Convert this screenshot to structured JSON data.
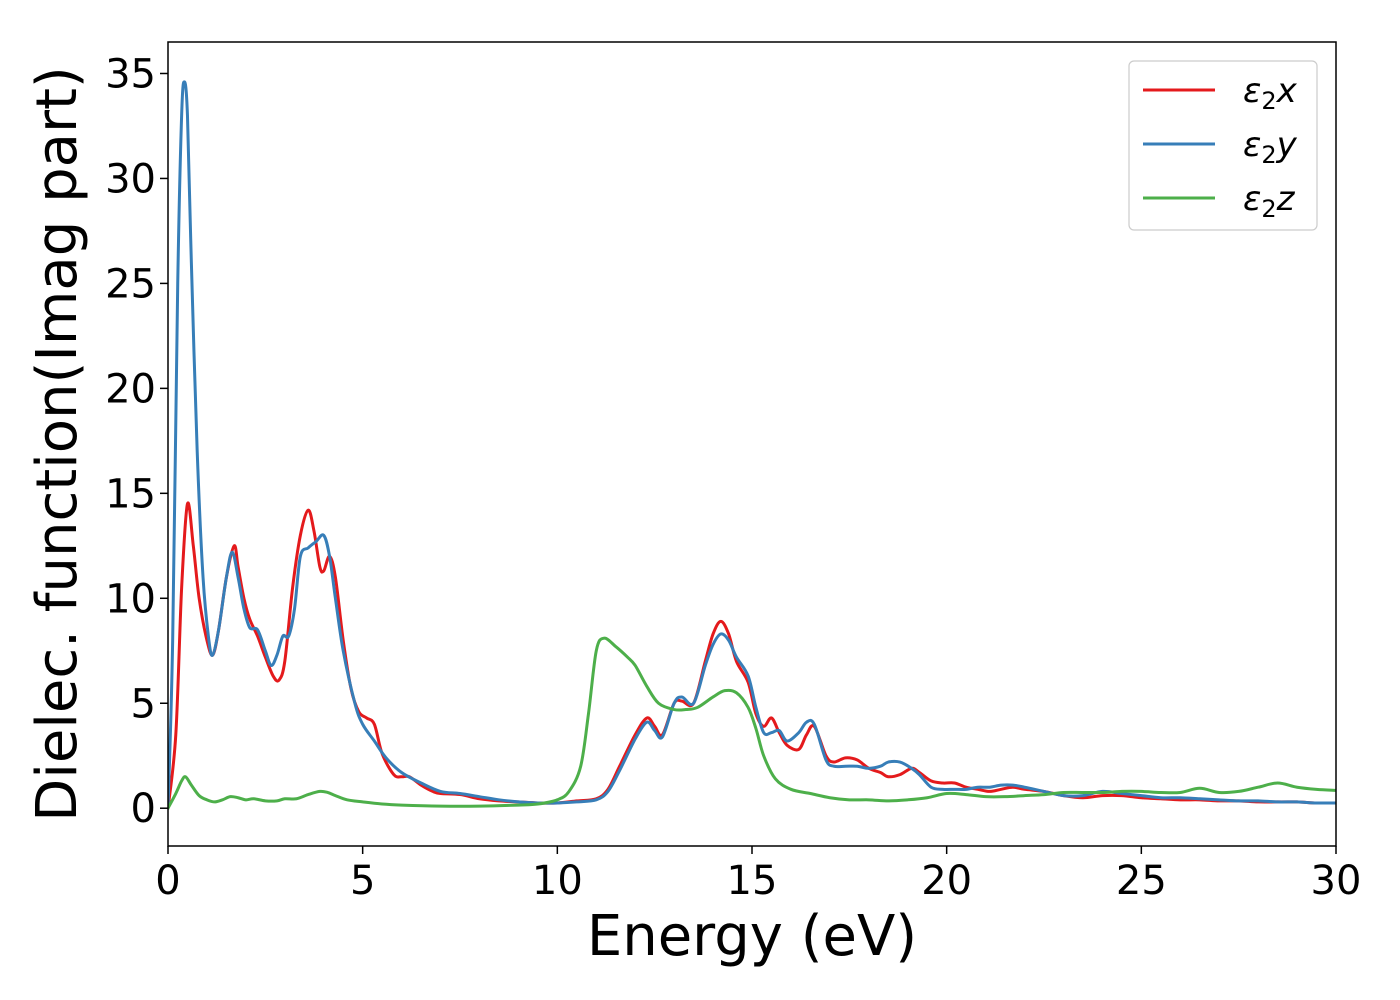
{
  "chart_data": {
    "type": "line",
    "title": "",
    "xlabel": "Energy (eV)",
    "ylabel": "Dielec. function(Imag part)",
    "xlim": [
      0,
      30
    ],
    "ylim": [
      -1.8,
      36.5
    ],
    "xticks": [
      0,
      5,
      10,
      15,
      20,
      25,
      30
    ],
    "yticks": [
      0,
      5,
      10,
      15,
      20,
      25,
      30,
      35
    ],
    "grid": false,
    "legend_position": "top-right",
    "series": [
      {
        "name": "ε₂x",
        "legend_main": "ε",
        "legend_sub": "2",
        "legend_axis": "x",
        "color": "#e41a1c",
        "x": [
          0,
          0.2,
          0.35,
          0.5,
          0.65,
          0.8,
          1.0,
          1.15,
          1.3,
          1.5,
          1.7,
          1.8,
          1.95,
          2.1,
          2.3,
          2.5,
          2.7,
          2.85,
          3.0,
          3.2,
          3.4,
          3.6,
          3.75,
          3.9,
          4.0,
          4.15,
          4.3,
          4.5,
          4.7,
          4.9,
          5.1,
          5.3,
          5.5,
          5.8,
          6.0,
          6.2,
          6.5,
          6.8,
          7.0,
          7.5,
          8.0,
          8.5,
          9.0,
          9.5,
          10.0,
          10.5,
          11.0,
          11.3,
          11.6,
          12.0,
          12.3,
          12.5,
          12.7,
          13.0,
          13.2,
          13.5,
          13.8,
          14.0,
          14.2,
          14.4,
          14.6,
          14.9,
          15.1,
          15.3,
          15.5,
          15.7,
          15.9,
          16.2,
          16.4,
          16.6,
          16.9,
          17.1,
          17.4,
          17.7,
          18.0,
          18.3,
          18.5,
          18.8,
          19.1,
          19.3,
          19.6,
          19.9,
          20.2,
          20.5,
          20.8,
          21.1,
          21.4,
          21.7,
          22.0,
          22.5,
          23.0,
          23.5,
          24.0,
          24.5,
          25.0,
          25.5,
          26.0,
          26.5,
          27.0,
          27.5,
          28.0,
          28.5,
          29.0,
          29.5,
          30.0
        ],
        "y": [
          0,
          3.5,
          10.5,
          14.5,
          12.5,
          10.0,
          8.0,
          7.3,
          8.5,
          11.0,
          12.5,
          11.5,
          10.0,
          9.0,
          8.2,
          7.2,
          6.3,
          6.1,
          7.0,
          10.5,
          13.0,
          14.2,
          13.2,
          11.5,
          11.3,
          12.0,
          11.0,
          8.0,
          5.7,
          4.6,
          4.3,
          4.0,
          2.6,
          1.6,
          1.5,
          1.5,
          1.1,
          0.8,
          0.7,
          0.65,
          0.45,
          0.35,
          0.3,
          0.25,
          0.25,
          0.35,
          0.45,
          0.9,
          2.0,
          3.5,
          4.3,
          3.9,
          3.5,
          5.0,
          5.1,
          5.0,
          7.0,
          8.3,
          8.9,
          8.3,
          7.0,
          6.0,
          4.5,
          3.9,
          4.3,
          3.6,
          3.0,
          2.8,
          3.5,
          3.9,
          2.5,
          2.2,
          2.4,
          2.3,
          1.9,
          1.7,
          1.5,
          1.6,
          1.9,
          1.7,
          1.3,
          1.2,
          1.2,
          1.0,
          0.9,
          0.8,
          0.9,
          1.0,
          0.9,
          0.8,
          0.6,
          0.5,
          0.6,
          0.6,
          0.5,
          0.45,
          0.4,
          0.4,
          0.35,
          0.35,
          0.3,
          0.3,
          0.3,
          0.25,
          0.25
        ]
      },
      {
        "name": "ε₂y",
        "legend_main": "ε",
        "legend_sub": "2",
        "legend_axis": "y",
        "color": "#377eb8",
        "x": [
          0,
          0.12,
          0.25,
          0.35,
          0.42,
          0.5,
          0.6,
          0.75,
          0.9,
          1.05,
          1.15,
          1.3,
          1.5,
          1.65,
          1.8,
          1.95,
          2.1,
          2.3,
          2.5,
          2.65,
          2.8,
          2.95,
          3.1,
          3.25,
          3.4,
          3.6,
          3.8,
          4.0,
          4.15,
          4.3,
          4.5,
          4.8,
          5.0,
          5.3,
          5.6,
          6.0,
          6.5,
          7.0,
          7.5,
          8.0,
          8.5,
          9.0,
          9.5,
          10.0,
          10.5,
          11.0,
          11.3,
          11.6,
          12.0,
          12.3,
          12.5,
          12.7,
          13.0,
          13.2,
          13.5,
          13.8,
          14.0,
          14.2,
          14.4,
          14.6,
          14.9,
          15.1,
          15.3,
          15.5,
          15.7,
          15.9,
          16.2,
          16.4,
          16.6,
          16.9,
          17.1,
          17.4,
          17.7,
          18.0,
          18.3,
          18.5,
          18.8,
          19.1,
          19.3,
          19.6,
          19.9,
          20.2,
          20.5,
          20.8,
          21.1,
          21.4,
          21.7,
          22.0,
          22.5,
          23.0,
          23.5,
          24.0,
          24.5,
          25.0,
          25.5,
          26.0,
          26.5,
          27.0,
          27.5,
          28.0,
          28.5,
          29.0,
          29.5,
          30.0
        ],
        "y": [
          0,
          8.0,
          25.0,
          33.0,
          34.6,
          33.0,
          26.0,
          17.0,
          11.0,
          8.0,
          7.3,
          8.5,
          11.0,
          12.2,
          11.0,
          9.5,
          8.6,
          8.5,
          7.5,
          6.8,
          7.3,
          8.2,
          8.2,
          9.5,
          12.0,
          12.4,
          12.7,
          13.0,
          12.0,
          10.0,
          7.5,
          5.0,
          4.0,
          3.2,
          2.4,
          1.7,
          1.2,
          0.8,
          0.7,
          0.55,
          0.4,
          0.3,
          0.25,
          0.25,
          0.3,
          0.4,
          0.8,
          1.8,
          3.3,
          4.1,
          3.7,
          3.4,
          5.0,
          5.3,
          5.0,
          6.8,
          7.8,
          8.3,
          8.0,
          7.2,
          6.3,
          4.8,
          3.6,
          3.6,
          3.7,
          3.2,
          3.6,
          4.1,
          4.0,
          2.3,
          2.0,
          2.0,
          2.0,
          1.9,
          2.0,
          2.2,
          2.2,
          1.9,
          1.6,
          1.0,
          0.9,
          0.9,
          0.9,
          1.0,
          1.0,
          1.1,
          1.1,
          1.0,
          0.8,
          0.6,
          0.6,
          0.8,
          0.7,
          0.6,
          0.5,
          0.5,
          0.45,
          0.4,
          0.35,
          0.35,
          0.3,
          0.3,
          0.25,
          0.25
        ]
      },
      {
        "name": "ε₂z",
        "legend_main": "ε",
        "legend_sub": "2",
        "legend_axis": "z",
        "color": "#4daf4a",
        "x": [
          0,
          0.2,
          0.35,
          0.45,
          0.6,
          0.8,
          1.0,
          1.2,
          1.4,
          1.6,
          1.8,
          2.0,
          2.2,
          2.5,
          2.8,
          3.0,
          3.3,
          3.6,
          3.9,
          4.1,
          4.3,
          4.6,
          5.0,
          5.5,
          6.0,
          7.0,
          8.0,
          9.0,
          9.5,
          10.0,
          10.3,
          10.6,
          10.8,
          11.0,
          11.2,
          11.5,
          11.8,
          12.0,
          12.3,
          12.6,
          13.0,
          13.3,
          13.6,
          14.0,
          14.3,
          14.6,
          14.9,
          15.1,
          15.3,
          15.6,
          16.0,
          16.5,
          17.0,
          17.5,
          18.0,
          18.5,
          19.0,
          19.5,
          20.0,
          20.5,
          21.0,
          21.5,
          22.0,
          22.5,
          23.0,
          23.5,
          24.0,
          24.5,
          25.0,
          25.5,
          26.0,
          26.5,
          27.0,
          27.5,
          28.0,
          28.5,
          29.0,
          29.5,
          30.0
        ],
        "y": [
          0,
          0.7,
          1.3,
          1.5,
          1.1,
          0.6,
          0.4,
          0.3,
          0.4,
          0.55,
          0.5,
          0.4,
          0.45,
          0.35,
          0.35,
          0.45,
          0.45,
          0.65,
          0.8,
          0.75,
          0.6,
          0.4,
          0.3,
          0.2,
          0.15,
          0.1,
          0.1,
          0.15,
          0.2,
          0.4,
          0.8,
          2.0,
          4.5,
          7.5,
          8.1,
          7.7,
          7.2,
          6.8,
          5.8,
          5.0,
          4.7,
          4.7,
          4.8,
          5.3,
          5.6,
          5.5,
          4.8,
          3.8,
          2.5,
          1.4,
          0.9,
          0.7,
          0.5,
          0.4,
          0.4,
          0.35,
          0.4,
          0.5,
          0.7,
          0.65,
          0.55,
          0.55,
          0.6,
          0.65,
          0.75,
          0.75,
          0.75,
          0.8,
          0.8,
          0.75,
          0.75,
          0.95,
          0.75,
          0.8,
          1.0,
          1.2,
          1.0,
          0.9,
          0.85
        ]
      }
    ]
  }
}
